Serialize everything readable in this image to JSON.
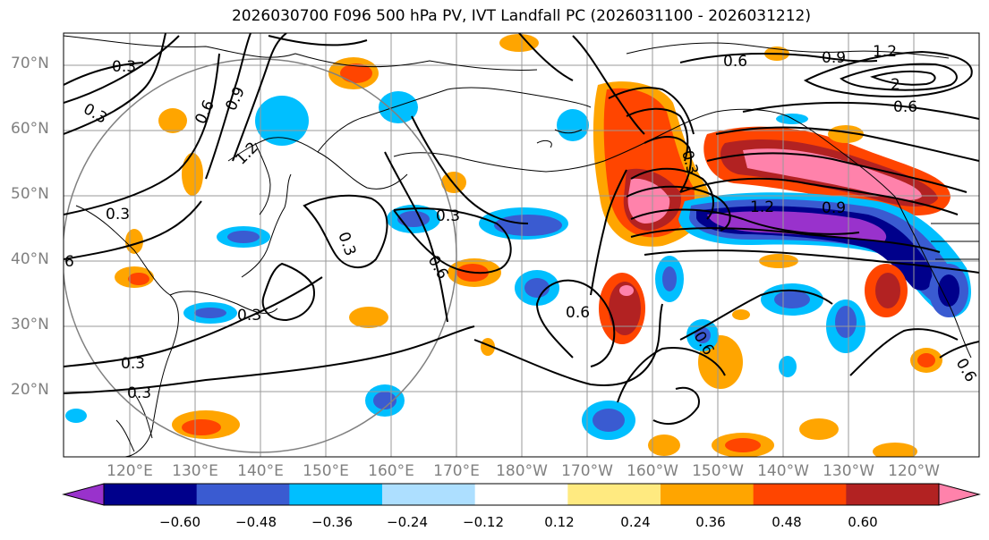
{
  "title": "2026030700 F096 500 hPa PV, IVT Landfall PC (2026031100 - 2026031212)",
  "axes": {
    "lat_ticks": [
      "70°N",
      "60°N",
      "50°N",
      "40°N",
      "30°N",
      "20°N"
    ],
    "lon_ticks": [
      "120°E",
      "130°E",
      "140°E",
      "150°E",
      "160°E",
      "170°E",
      "180°W",
      "170°W",
      "160°W",
      "150°W",
      "140°W",
      "130°W",
      "120°W"
    ]
  },
  "colorbar": {
    "colors": [
      "#9932CC",
      "#00008B",
      "#3A5BD1",
      "#00BFFF",
      "#ADDFFF",
      "#FFFFFF",
      "#FFEA80",
      "#FFA500",
      "#FF4500",
      "#B22222",
      "#FF82AB"
    ],
    "tick_labels": [
      "−0.60",
      "−0.48",
      "−0.36",
      "−0.24",
      "−0.12",
      "0.12",
      "0.24",
      "0.36",
      "0.48",
      "0.60"
    ]
  },
  "contour_labels": [
    "0.3",
    "0.3",
    "0.6",
    "0.9",
    "1.2",
    "0.3",
    "0.3",
    "0.3",
    "0.3",
    "0.3",
    "0.6",
    "0.6",
    "0.3",
    "0.6",
    "1.2",
    "0.9",
    "0.6",
    "0.9",
    "1.2",
    "0.6",
    "0.3",
    "6",
    "2",
    "0.6"
  ]
}
